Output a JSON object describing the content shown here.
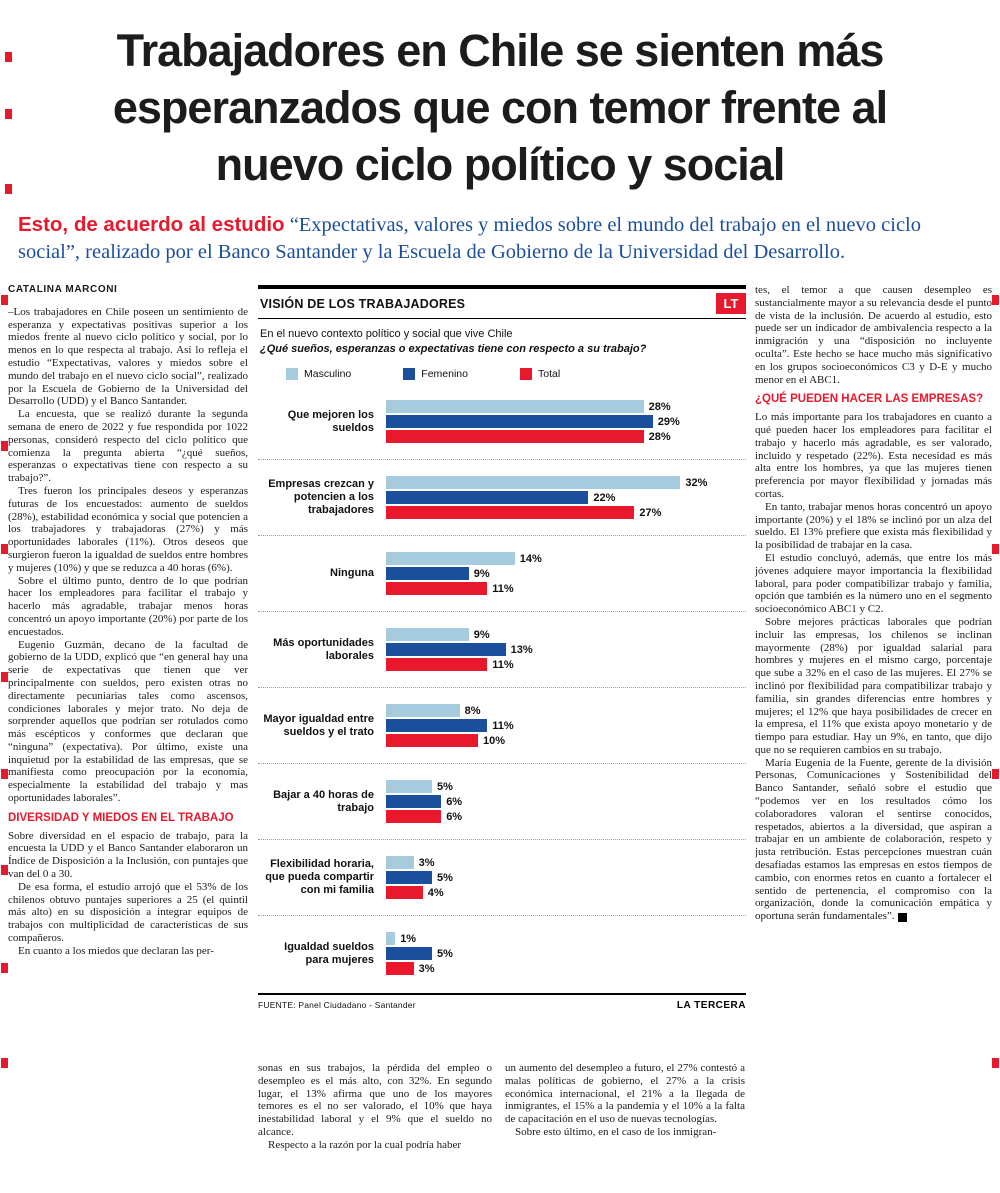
{
  "page": {
    "headline_lines": [
      "Trabajadores en Chile se sienten más",
      "esperanzados que con temor frente al",
      "nuevo ciclo político y social"
    ],
    "subhead_lead": "Esto, de acuerdo al estudio",
    "subhead_rest": " “Expectativas, valores y miedos sobre el mundo del trabajo en el nuevo ciclo social”, realizado por el Banco Santander y la Escuela de Gobierno de la Universidad del Desarrollo.",
    "byline": "CATALINA MARCONI",
    "end_mark": "P"
  },
  "left_column": {
    "intro_paragraphs": [
      "–Los trabajadores en Chile poseen un sentimiento de esperanza y expectativas positivas superior a los miedos frente al nuevo ciclo político y social, por lo menos en lo que respecta al trabajo. Así lo refleja el estudio “Expectativas, valores y miedos sobre el mundo del trabajo en el nuevo ciclo social”, realizado por la Escuela de Gobierno de la Universidad del Desarrollo (UDD) y el Banco Santander.",
      "La encuesta, que se realizó durante la segunda semana de enero de 2022 y fue respondida por 1022 personas, consideró respecto del ciclo político que comienza la pregunta abierta “¿qué sueños, esperanzas o expectativas tiene con respecto a su trabajo?”.",
      "Tres fueron los principales deseos y esperanzas futuras de los encuestados: aumento de sueldos (28%), estabilidad económica y social que potencien a los trabajadores y trabajadoras (27%) y más oportunidades laborales (11%). Otros deseos que surgieron fueron la igualdad de sueldos entre hombres y mujeres (10%) y que se reduzca a 40 horas (6%).",
      "Sobre el último punto, dentro de lo que podrían hacer los empleadores para facilitar el trabajo y hacerlo más agradable, trabajar menos horas concentró un apoyo importante (20%) por parte de los encuestados.",
      "Eugenio Guzmán, decano de la facultad de gobierno de la UDD, explicó que “en general hay una serie de expectativas que tienen que ver principalmente con sueldos, pero existen otras no directamente pecuniarias tales como ascensos, condiciones laborales y mejor trato. No deja de sorprender aquellos que podrían ser rotulados como más escépticos y conformes que declaran que “ninguna” (expectativa). Por último, existe una inquietud por la estabilidad de las empresas, que se manifiesta como preocupación por la economía, especialmente la estabilidad del trabajo y mas oportunidades laborales”."
    ],
    "heading": "DIVERSIDAD Y MIEDOS EN EL TRABAJO",
    "after_paragraphs": [
      "Sobre diversidad en el espacio de trabajo, para la encuesta la UDD y el Banco Santander elaboraron un Índice de Disposición a la Inclusión, con puntajes que van del 0 a 30.",
      "De esa forma, el estudio arrojó que el 53% de los chilenos obtuvo puntajes superiores a 25 (el quintil más alto) en su disposición a integrar equipos de trabajos con multiplicidad de características de sus compañeros.",
      "En cuanto a los miedos que declaran las per-"
    ]
  },
  "bottom_columns": {
    "col1": [
      "sonas en sus trabajos, la pérdida del empleo o desempleo es el más alto, con 32%. En segundo lugar, el 13% afirma que uno de los mayores temores es el no ser valorado, el 10% que haya inestabilidad laboral y el 9% que el sueldo no alcance.",
      "Respecto a la razón por la cual podría haber"
    ],
    "col2": [
      "un aumento del desempleo a futuro, el 27% contestó a malas políticas de gobierno, el 27% a la crisis económica internacional, el 21% a la llegada de inmigrantes, el 15% a la pandemia y el 10% a la falta de capacitación en el uso de nuevas tecnologías.",
      "Sobre esto último, en el caso de los inmigran-"
    ]
  },
  "right_column": {
    "intro_paragraphs": [
      "tes, el temor a que causen desempleo es sustancialmente mayor a su relevancia desde el punto de vista de la inclusión. De acuerdo al estudio, esto puede ser un indicador de ambivalencia respecto a la inmigración y una “disposición no incluyente oculta”. Este hecho se hace mucho más significativo en los grupos socioeconómicos C3 y D-E y mucho menor en el ABC1."
    ],
    "heading": "¿QUÉ PUEDEN HACER LAS EMPRESAS?",
    "after_paragraphs": [
      "Lo más importante para los trabajadores en cuanto a qué pueden hacer los empleadores para facilitar el trabajo y hacerlo más agradable, es ser valorado, incluido y respetado (22%). Esta necesidad es más alta entre los hombres, ya que las mujeres tienen preferencia por mayor flexibilidad y jornadas más cortas.",
      "En tanto, trabajar menos horas concentró un apoyo importante (20%) y el 18% se inclinó por un alza del sueldo. El 13% prefiere que exista más flexibilidad y la posibilidad de trabajar en la casa.",
      "El estudio concluyó, además, que entre los más jóvenes adquiere mayor importancia la flexibilidad laboral, para poder compatibilizar trabajo y familia, opción que también es la número uno en el segmento socioeconómico ABC1 y C2.",
      "Sobre mejores prácticas laborales que podrían incluir las empresas, los chilenos se inclinan mayormente (28%) por igualdad salarial para hombres y mujeres en el mismo cargo, porcentaje que sube a 32% en el caso de las mujeres. El 27% se inclinó por flexibilidad para compatibilizar trabajo y familia, sin grandes diferencias entre hombres y mujeres; el 12% que haya posibilidades de crecer en la empresa, el 11% que exista apoyo monetario y de tiempo para estudiar. Hay un 9%, en tanto, que dijo que no se requieren cambios en su trabajo.",
      "María Eugenia de la Fuente, gerente de la división Personas, Comunicaciones y Sostenibilidad del Banco Santander, señaló sobre el estudio que “podemos ver en los resultados cómo los colaboradores valoran el sentirse conocidos, respetados, abiertos a la diversidad, que aspiran a trabajar en un ambiente de colaboración, respeto y justa retribución. Estas percepciones muestran cuán desafiadas estamos las empresas en estos tiempos de cambio, con enormes retos en cuanto a fortalecer el sentido de pertenencia, el compromiso con la organización, donde la comunicación empática y oportuna serán fundamentales”."
    ]
  },
  "chart": {
    "title": "VISIÓN DE LOS TRABAJADORES",
    "logo_text": "LT",
    "subtitle": "En el nuevo contexto político y social que vive Chile",
    "question": "¿Qué sueños, esperanzas o expectativas tiene con respecto a su trabajo?",
    "source": "FUENTE: Panel Ciudadano - Santander",
    "credit": "LA TERCERA"
  },
  "chart_data": {
    "type": "bar",
    "orientation": "horizontal",
    "title": "VISIÓN DE LOS TRABAJADORES",
    "subtitle": "En el nuevo contexto político y social que vive Chile",
    "question": "¿Qué sueños, esperanzas o expectativas tiene con respecto a su trabajo?",
    "categories": [
      "Que mejoren los sueldos",
      "Empresas crezcan y potencien a los trabajadores",
      "Ninguna",
      "Más oportunidades laborales",
      "Mayor igualdad entre sueldos y el trato",
      "Bajar a 40 horas de trabajo",
      "Flexibilidad horaria, que pueda compartir con mi familia",
      "Igualdad sueldos para mujeres"
    ],
    "series": [
      {
        "name": "Masculino",
        "color": "#a6cade",
        "values": [
          28,
          32,
          14,
          9,
          8,
          5,
          3,
          1
        ]
      },
      {
        "name": "Femenino",
        "color": "#1b4e9b",
        "values": [
          29,
          22,
          9,
          13,
          11,
          6,
          5,
          5
        ]
      },
      {
        "name": "Total",
        "color": "#e8192d",
        "values": [
          28,
          27,
          11,
          11,
          10,
          6,
          4,
          3
        ]
      }
    ],
    "value_suffix": "%",
    "xlim": [
      0,
      35
    ],
    "legend_position": "top",
    "grid": false
  }
}
